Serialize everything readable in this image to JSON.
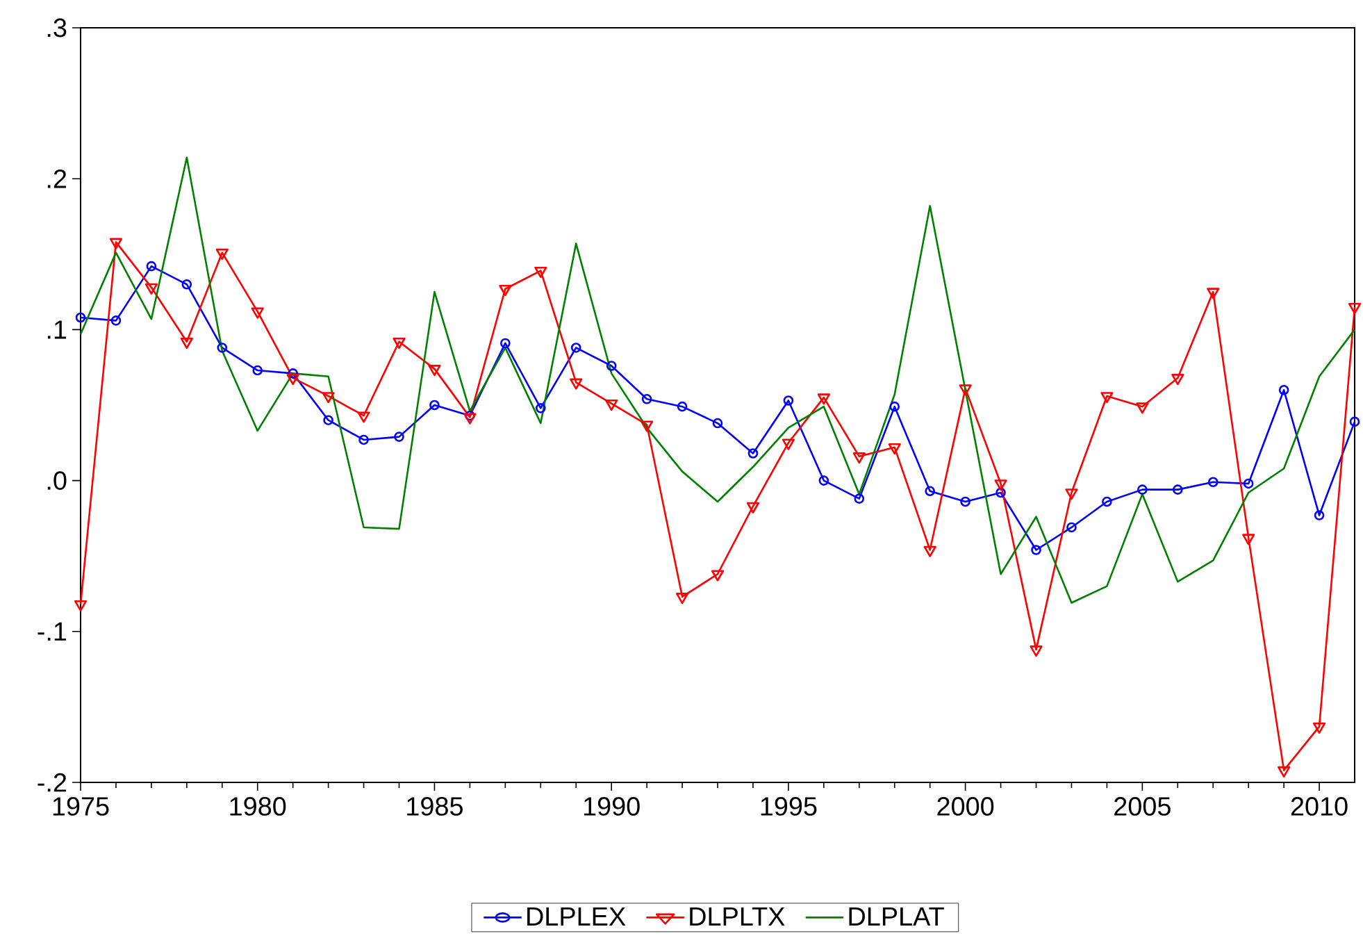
{
  "chart_data": {
    "type": "line",
    "x": [
      1975,
      1976,
      1977,
      1978,
      1979,
      1980,
      1981,
      1982,
      1983,
      1984,
      1985,
      1986,
      1987,
      1988,
      1989,
      1990,
      1991,
      1992,
      1993,
      1994,
      1995,
      1996,
      1997,
      1998,
      1999,
      2000,
      2001,
      2002,
      2003,
      2004,
      2005,
      2006,
      2007,
      2008,
      2009,
      2010,
      2011
    ],
    "series": [
      {
        "name": "DLPLEX",
        "color": "#0000ff",
        "marker": "circle",
        "values": [
          0.108,
          0.106,
          0.142,
          0.13,
          0.088,
          0.073,
          0.071,
          0.04,
          0.027,
          0.029,
          0.05,
          0.043,
          0.091,
          0.048,
          0.088,
          0.076,
          0.054,
          0.049,
          0.038,
          0.018,
          0.053,
          0.0,
          -0.012,
          0.049,
          -0.007,
          -0.014,
          -0.008,
          -0.046,
          -0.031,
          -0.014,
          -0.006,
          -0.006,
          -0.001,
          -0.002,
          0.06,
          -0.023,
          0.039
        ]
      },
      {
        "name": "DLPLTX",
        "color": "#ff0000",
        "marker": "triangle",
        "values": [
          -0.082,
          0.158,
          0.128,
          0.092,
          0.151,
          0.112,
          0.068,
          0.056,
          0.043,
          0.092,
          0.074,
          0.042,
          0.127,
          0.139,
          0.065,
          0.051,
          0.037,
          -0.077,
          -0.062,
          -0.017,
          0.025,
          0.055,
          0.016,
          0.022,
          -0.046,
          0.061,
          -0.002,
          -0.112,
          -0.008,
          0.056,
          0.049,
          0.068,
          0.125,
          -0.038,
          -0.192,
          -0.163,
          0.115
        ]
      },
      {
        "name": "DLPLAT",
        "color": "#008000",
        "marker": "none",
        "values": [
          0.097,
          0.151,
          0.107,
          0.214,
          0.086,
          0.033,
          0.071,
          0.069,
          -0.031,
          -0.032,
          0.125,
          0.046,
          0.088,
          0.038,
          0.157,
          0.071,
          0.035,
          0.006,
          -0.014,
          0.009,
          0.035,
          0.049,
          -0.009,
          0.057,
          0.182,
          0.06,
          -0.062,
          -0.024,
          -0.081,
          -0.07,
          -0.009,
          -0.067,
          -0.053,
          -0.008,
          0.008,
          0.069,
          0.1
        ]
      }
    ],
    "xlim": [
      1975,
      2011
    ],
    "xticks": [
      1975,
      1980,
      1985,
      1990,
      1995,
      2000,
      2005,
      2010
    ],
    "ylim": [
      -0.2,
      0.3
    ],
    "yticks": [
      {
        "value": -0.2,
        "label": "-.2"
      },
      {
        "value": -0.1,
        "label": "-.1"
      },
      {
        "value": 0,
        "label": ".0"
      },
      {
        "value": 0.1,
        "label": ".1"
      },
      {
        "value": 0.2,
        "label": ".2"
      },
      {
        "value": 0.3,
        "label": ".3"
      }
    ],
    "legend": "bottom",
    "grid": false,
    "line_style": "solid"
  }
}
